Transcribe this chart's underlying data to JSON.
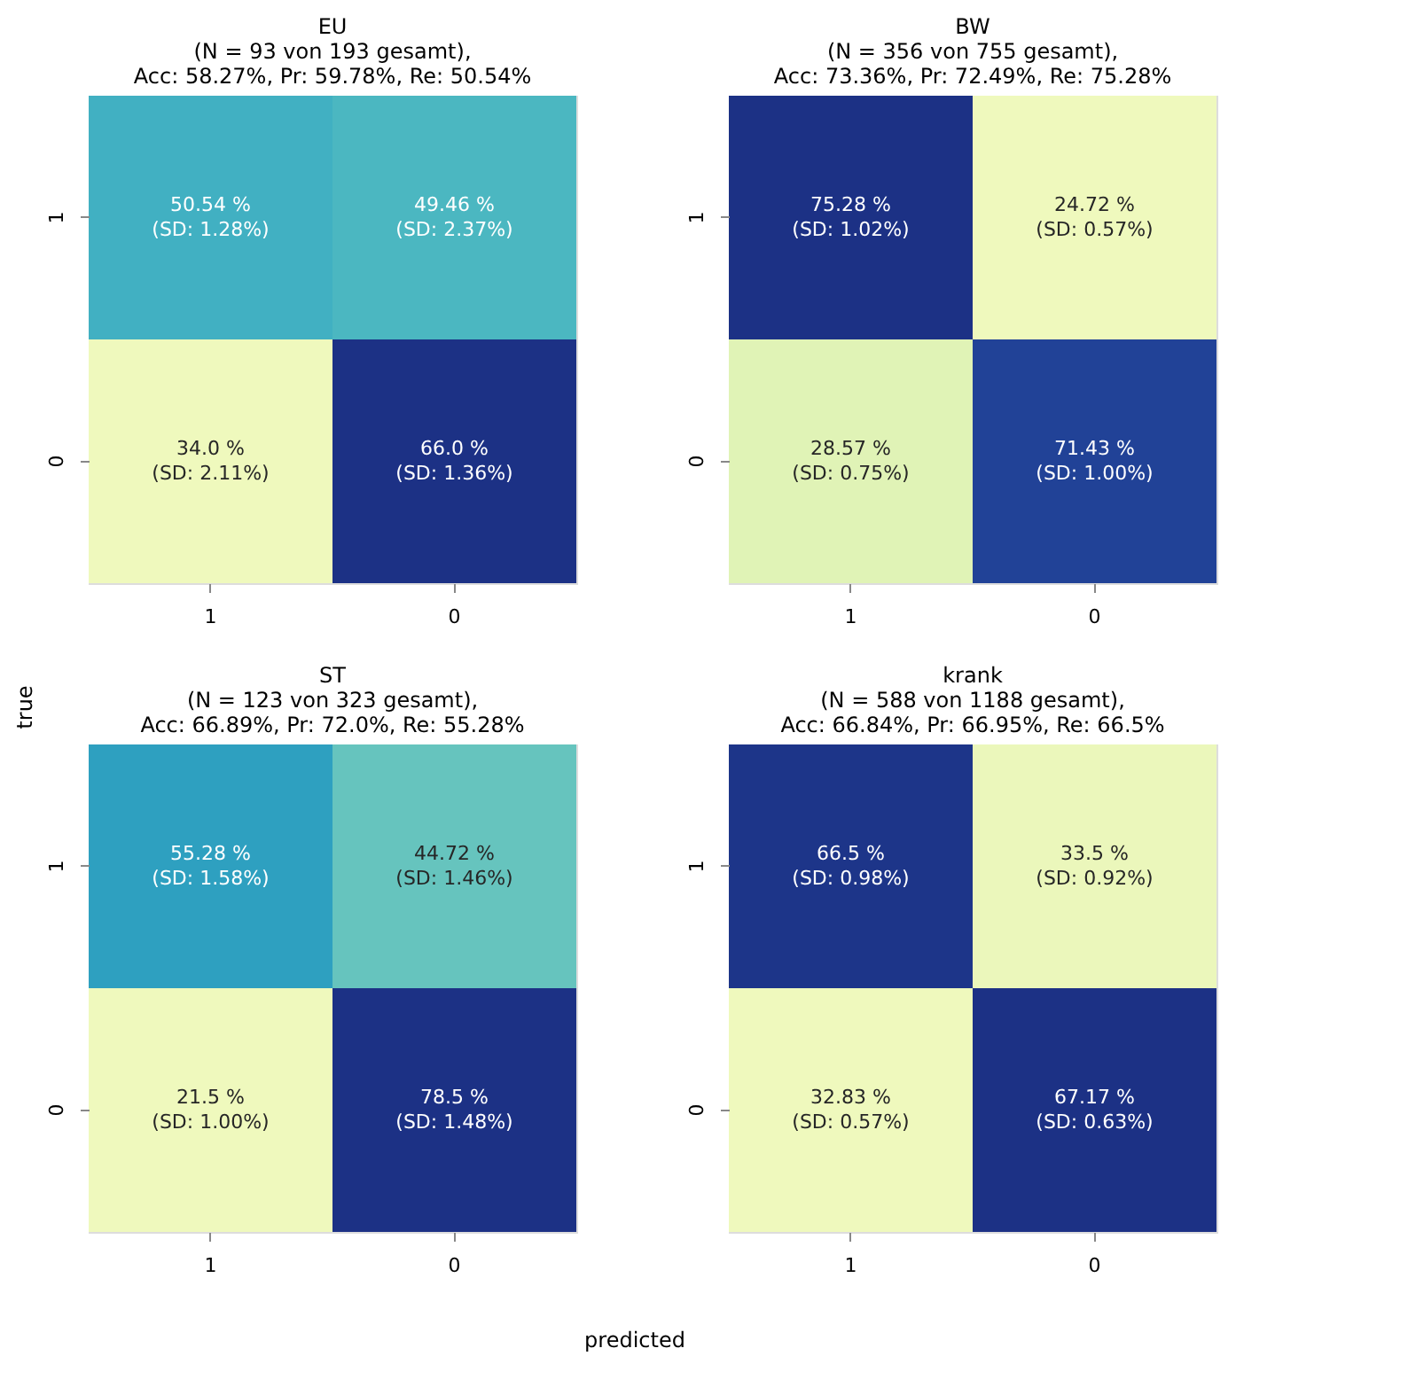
{
  "chart_data": [
    {
      "type": "heatmap",
      "title": "EU\n(N = 93 von 193 gesamt),\nAcc: 58.27%,  Pr: 59.78%, Re: 50.54%",
      "ylabel": "true",
      "categories": [
        "1",
        "0"
      ],
      "y_categories": [
        "1",
        "0"
      ],
      "cells": [
        [
          50.54,
          49.46
        ],
        [
          34.0,
          66.0
        ]
      ],
      "cell_labels": [
        [
          "50.54 %",
          "49.46 %"
        ],
        [
          "34.0 %",
          "66.0 %"
        ]
      ],
      "annotations": [
        "(SD: 1.28%)",
        "(SD: 2.37%)",
        "(SD: 2.11%)",
        "(SD: 1.36%)"
      ]
    },
    {
      "type": "heatmap",
      "title": "BW\n(N = 356 von 755 gesamt),\nAcc: 73.36%,  Pr: 72.49%, Re: 75.28%",
      "categories": [
        "1",
        "0"
      ],
      "y_categories": [
        "1",
        "0"
      ],
      "cells": [
        [
          75.28,
          24.72
        ],
        [
          28.57,
          71.43
        ]
      ],
      "cell_labels": [
        [
          "75.28 %",
          "24.72 %"
        ],
        [
          "28.57 %",
          "71.43 %"
        ]
      ],
      "annotations": [
        "(SD: 1.02%)",
        "(SD: 0.57%)",
        "(SD: 0.75%)",
        "(SD: 1.00%)"
      ]
    },
    {
      "type": "heatmap",
      "title": "ST\n(N = 123 von 323 gesamt),\nAcc: 66.89%,  Pr: 72.0%, Re: 55.28%",
      "xlabel": "predicted",
      "categories": [
        "1",
        "0"
      ],
      "y_categories": [
        "1",
        "0"
      ],
      "cells": [
        [
          55.28,
          44.72
        ],
        [
          21.5,
          78.5
        ]
      ],
      "cell_labels": [
        [
          "55.28 %",
          "44.72 %"
        ],
        [
          "21.5 %",
          "78.5 %"
        ]
      ],
      "annotations": [
        "(SD: 1.58%)",
        "(SD: 1.46%)",
        "(SD: 1.00%)",
        "(SD: 1.48%)"
      ]
    },
    {
      "type": "heatmap",
      "title": "krank\n(N = 588 von 1188 gesamt),\nAcc: 66.84%,  Pr: 66.95%, Re: 66.5%",
      "categories": [
        "1",
        "0"
      ],
      "y_categories": [
        "1",
        "0"
      ],
      "cells": [
        [
          66.5,
          33.5
        ],
        [
          32.83,
          67.17
        ]
      ],
      "cell_labels": [
        [
          "66.5 %",
          "33.5 %"
        ],
        [
          "32.83 %",
          "67.17 %"
        ]
      ],
      "annotations": [
        "(SD: 0.98%)",
        "(SD: 0.92%)",
        "(SD: 0.57%)",
        "(SD: 0.63%)"
      ]
    }
  ]
}
